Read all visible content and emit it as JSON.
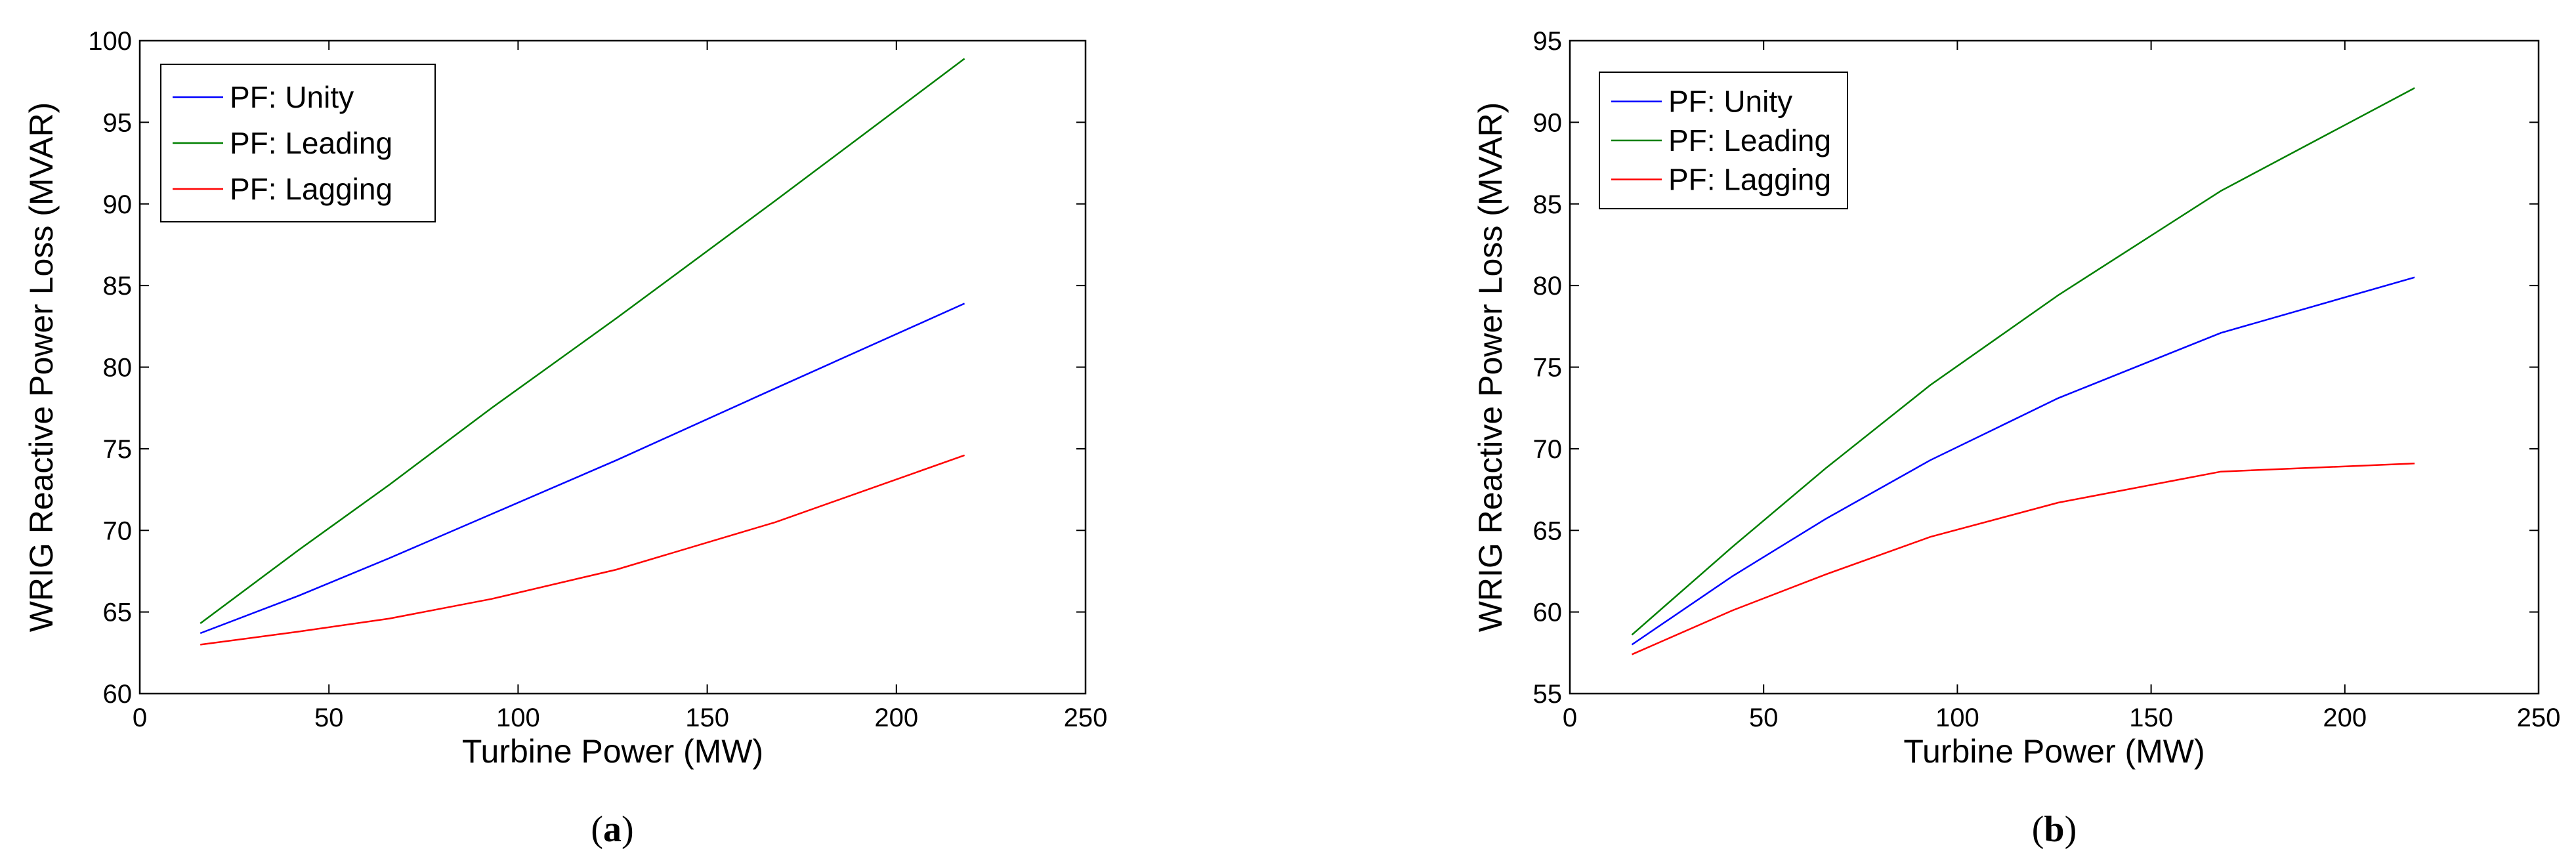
{
  "chart_data": [
    {
      "type": "line",
      "panel": "a",
      "caption_letter": "a",
      "xlabel": "Turbine Power (MW)",
      "ylabel": "WRIG Reactive Power Loss (MVAR)",
      "xlim": [
        0,
        250
      ],
      "ylim": [
        60,
        100
      ],
      "xticks": [
        0,
        50,
        100,
        150,
        200,
        250
      ],
      "yticks": [
        60,
        65,
        70,
        75,
        80,
        85,
        90,
        95,
        100
      ],
      "grid": false,
      "legend_position": "top-left",
      "series": [
        {
          "name": "PF: Unity",
          "color": "#0000ff",
          "x": [
            16,
            42,
            66,
            93,
            126,
            168,
            218
          ],
          "y": [
            63.7,
            66.0,
            68.3,
            71.0,
            74.3,
            78.7,
            83.9
          ]
        },
        {
          "name": "PF: Leading",
          "color": "#008000",
          "x": [
            16,
            42,
            66,
            93,
            126,
            168,
            218
          ],
          "y": [
            64.3,
            68.8,
            72.8,
            77.5,
            83.0,
            90.2,
            98.9
          ]
        },
        {
          "name": "PF: Lagging",
          "color": "#ff0000",
          "x": [
            16,
            42,
            66,
            93,
            126,
            168,
            218
          ],
          "y": [
            63.0,
            63.8,
            64.6,
            65.8,
            67.6,
            70.5,
            74.6
          ]
        }
      ]
    },
    {
      "type": "line",
      "panel": "b",
      "caption_letter": "b",
      "xlabel": "Turbine Power (MW)",
      "ylabel": "WRIG Reactive Power Loss (MVAR)",
      "xlim": [
        0,
        250
      ],
      "ylim": [
        55,
        95
      ],
      "xticks": [
        0,
        50,
        100,
        150,
        200,
        250
      ],
      "yticks": [
        55,
        60,
        65,
        70,
        75,
        80,
        85,
        90,
        95
      ],
      "grid": false,
      "legend_position": "top-left",
      "series": [
        {
          "name": "PF: Unity",
          "color": "#0000ff",
          "x": [
            16,
            42,
            66,
            93,
            126,
            168,
            218
          ],
          "y": [
            58.0,
            62.2,
            65.7,
            69.3,
            73.1,
            77.1,
            80.5
          ]
        },
        {
          "name": "PF: Leading",
          "color": "#008000",
          "x": [
            16,
            42,
            66,
            93,
            126,
            168,
            218
          ],
          "y": [
            58.6,
            64.0,
            68.8,
            73.9,
            79.4,
            85.8,
            92.1
          ]
        },
        {
          "name": "PF: Lagging",
          "color": "#ff0000",
          "x": [
            16,
            42,
            66,
            93,
            126,
            168,
            218
          ],
          "y": [
            57.4,
            60.1,
            62.3,
            64.6,
            66.7,
            68.6,
            69.1
          ]
        }
      ]
    }
  ]
}
